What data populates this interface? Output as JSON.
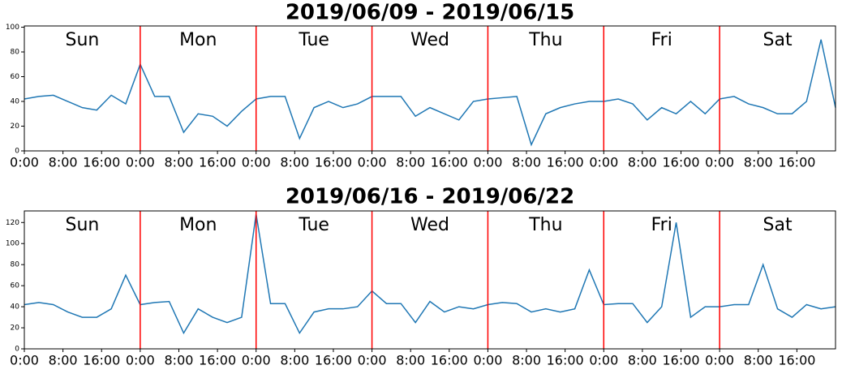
{
  "chart_data": [
    {
      "type": "line",
      "title": "2019/06/09 - 2019/06/15",
      "color": "#1f77b4",
      "x": [
        0,
        3,
        6,
        9,
        12,
        15,
        18,
        21,
        24,
        27,
        30,
        33,
        36,
        39,
        42,
        45,
        48,
        51,
        54,
        57,
        60,
        63,
        66,
        69,
        72,
        75,
        78,
        81,
        84,
        87,
        90,
        93,
        96,
        99,
        102,
        105,
        108,
        111,
        114,
        117,
        120,
        123,
        126,
        129,
        132,
        135,
        138,
        141,
        144,
        147,
        150,
        153,
        156,
        159,
        162,
        165,
        168
      ],
      "values": [
        42,
        44,
        45,
        40,
        35,
        33,
        45,
        38,
        70,
        44,
        44,
        15,
        30,
        28,
        20,
        32,
        42,
        44,
        44,
        10,
        35,
        40,
        35,
        38,
        44,
        44,
        44,
        28,
        35,
        30,
        25,
        40,
        42,
        43,
        44,
        5,
        30,
        35,
        38,
        40,
        40,
        42,
        38,
        25,
        35,
        30,
        40,
        30,
        42,
        44,
        38,
        35,
        30,
        30,
        40,
        90,
        35
      ],
      "xlim": [
        0,
        168
      ],
      "ylim": [
        0,
        101
      ],
      "yticks": [
        0,
        20,
        40,
        60,
        80,
        100
      ],
      "xticks": [
        {
          "value": 0,
          "label": "0:00"
        },
        {
          "value": 8,
          "label": "8:00"
        },
        {
          "value": 16,
          "label": "16:00"
        },
        {
          "value": 24,
          "label": "0:00"
        },
        {
          "value": 32,
          "label": "8:00"
        },
        {
          "value": 40,
          "label": "16:00"
        },
        {
          "value": 48,
          "label": "0:00"
        },
        {
          "value": 56,
          "label": "8:00"
        },
        {
          "value": 64,
          "label": "16:00"
        },
        {
          "value": 72,
          "label": "0:00"
        },
        {
          "value": 80,
          "label": "8:00"
        },
        {
          "value": 88,
          "label": "16:00"
        },
        {
          "value": 96,
          "label": "0:00"
        },
        {
          "value": 104,
          "label": "8:00"
        },
        {
          "value": 112,
          "label": "16:00"
        },
        {
          "value": 120,
          "label": "0:00"
        },
        {
          "value": 128,
          "label": "8:00"
        },
        {
          "value": 136,
          "label": "16:00"
        },
        {
          "value": 144,
          "label": "0:00"
        },
        {
          "value": 152,
          "label": "8:00"
        },
        {
          "value": 160,
          "label": "16:00"
        }
      ],
      "vlines": [
        24,
        48,
        72,
        96,
        120,
        144
      ],
      "vline_color": "#ff0000",
      "annotations": [
        {
          "text": "Sun",
          "x": 12
        },
        {
          "text": "Mon",
          "x": 36
        },
        {
          "text": "Tue",
          "x": 60
        },
        {
          "text": "Wed",
          "x": 84
        },
        {
          "text": "Thu",
          "x": 108
        },
        {
          "text": "Fri",
          "x": 132
        },
        {
          "text": "Sat",
          "x": 156
        }
      ]
    },
    {
      "type": "line",
      "title": "2019/06/16 - 2019/06/22",
      "color": "#1f77b4",
      "x": [
        0,
        3,
        6,
        9,
        12,
        15,
        18,
        21,
        24,
        27,
        30,
        33,
        36,
        39,
        42,
        45,
        48,
        51,
        54,
        57,
        60,
        63,
        66,
        69,
        72,
        75,
        78,
        81,
        84,
        87,
        90,
        93,
        96,
        99,
        102,
        105,
        108,
        111,
        114,
        117,
        120,
        123,
        126,
        129,
        132,
        135,
        138,
        141,
        144,
        147,
        150,
        153,
        156,
        159,
        162,
        165,
        168
      ],
      "values": [
        42,
        44,
        42,
        35,
        30,
        30,
        38,
        70,
        42,
        44,
        45,
        15,
        38,
        30,
        25,
        30,
        128,
        43,
        43,
        15,
        35,
        38,
        38,
        40,
        55,
        43,
        43,
        25,
        45,
        35,
        40,
        38,
        42,
        44,
        43,
        35,
        38,
        35,
        38,
        75,
        42,
        43,
        43,
        25,
        40,
        120,
        30,
        40,
        40,
        42,
        42,
        80,
        38,
        30,
        42,
        38,
        40
      ],
      "xlim": [
        0,
        168
      ],
      "ylim": [
        0,
        131
      ],
      "yticks": [
        0,
        20,
        40,
        60,
        80,
        100,
        120
      ],
      "xticks": [
        {
          "value": 0,
          "label": "0:00"
        },
        {
          "value": 8,
          "label": "8:00"
        },
        {
          "value": 16,
          "label": "16:00"
        },
        {
          "value": 24,
          "label": "0:00"
        },
        {
          "value": 32,
          "label": "8:00"
        },
        {
          "value": 40,
          "label": "16:00"
        },
        {
          "value": 48,
          "label": "0:00"
        },
        {
          "value": 56,
          "label": "8:00"
        },
        {
          "value": 64,
          "label": "16:00"
        },
        {
          "value": 72,
          "label": "0:00"
        },
        {
          "value": 80,
          "label": "8:00"
        },
        {
          "value": 88,
          "label": "16:00"
        },
        {
          "value": 96,
          "label": "0:00"
        },
        {
          "value": 104,
          "label": "8:00"
        },
        {
          "value": 112,
          "label": "16:00"
        },
        {
          "value": 120,
          "label": "0:00"
        },
        {
          "value": 128,
          "label": "8:00"
        },
        {
          "value": 136,
          "label": "16:00"
        },
        {
          "value": 144,
          "label": "0:00"
        },
        {
          "value": 152,
          "label": "8:00"
        },
        {
          "value": 160,
          "label": "16:00"
        }
      ],
      "vlines": [
        24,
        48,
        72,
        96,
        120,
        144
      ],
      "vline_color": "#ff0000",
      "annotations": [
        {
          "text": "Sun",
          "x": 12
        },
        {
          "text": "Mon",
          "x": 36
        },
        {
          "text": "Tue",
          "x": 60
        },
        {
          "text": "Wed",
          "x": 84
        },
        {
          "text": "Thu",
          "x": 108
        },
        {
          "text": "Fri",
          "x": 132
        },
        {
          "text": "Sat",
          "x": 156
        }
      ]
    }
  ]
}
